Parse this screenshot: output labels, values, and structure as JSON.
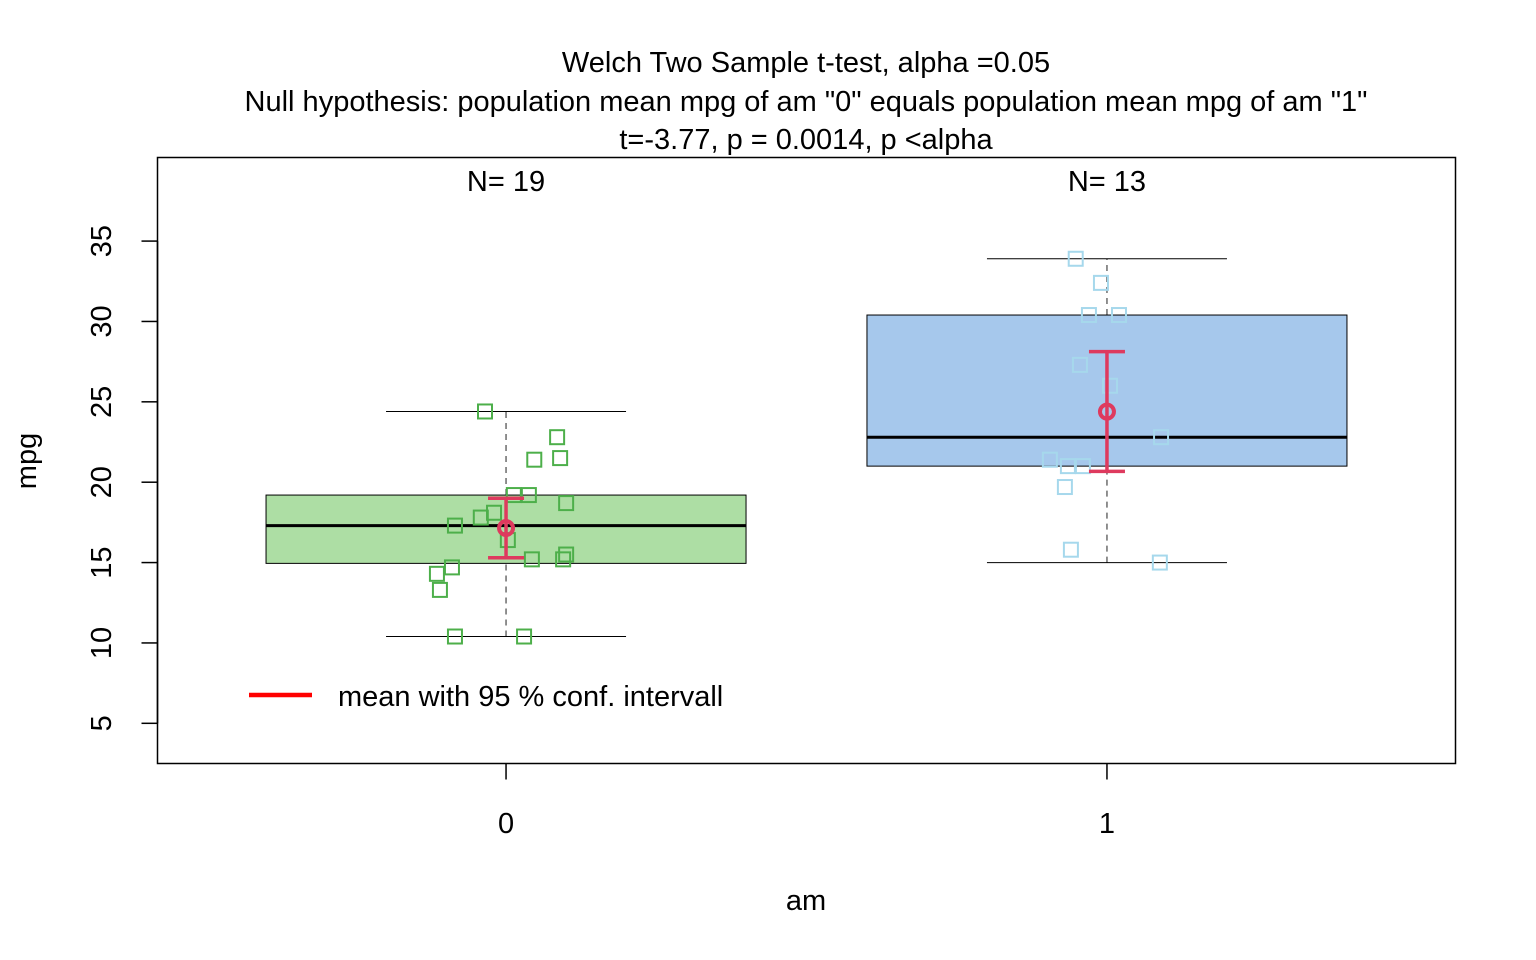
{
  "chart_data": {
    "type": "box",
    "title_lines": [
      "Welch Two Sample t-test, alpha =0.05",
      "Null hypothesis: population mean mpg of am \"0\" equals population mean mpg of am \"1\"",
      "t=-3.77, p = 0.0014, p <alpha"
    ],
    "xlabel": "am",
    "ylabel": "mpg",
    "categories": [
      "0",
      "1"
    ],
    "ylim": [
      2.5,
      40.2
    ],
    "yticks": [
      5,
      10,
      15,
      20,
      25,
      30,
      35
    ],
    "xlim": [
      0.42,
      2.58
    ],
    "grid": false,
    "groups": [
      {
        "category": "0",
        "n_label": "N= 19",
        "box_color": "#addea4",
        "point_color": "#4daf4a",
        "whisker_low": 10.4,
        "q1": 14.95,
        "median": 17.3,
        "q3": 19.2,
        "whisker_high": 24.4,
        "mean": 17.15,
        "ci_low": 15.3,
        "ci_high": 19.0,
        "points": [
          {
            "x": 0.965,
            "y": 24.4
          },
          {
            "x": 1.085,
            "y": 22.8
          },
          {
            "x": 1.09,
            "y": 21.5
          },
          {
            "x": 1.047,
            "y": 21.4
          },
          {
            "x": 1.038,
            "y": 19.2
          },
          {
            "x": 1.013,
            "y": 19.2
          },
          {
            "x": 1.1,
            "y": 18.7
          },
          {
            "x": 0.98,
            "y": 18.1
          },
          {
            "x": 0.958,
            "y": 17.8
          },
          {
            "x": 0.915,
            "y": 17.3
          },
          {
            "x": 1.003,
            "y": 16.4
          },
          {
            "x": 1.1,
            "y": 15.5
          },
          {
            "x": 1.095,
            "y": 15.2
          },
          {
            "x": 1.043,
            "y": 15.2
          },
          {
            "x": 0.91,
            "y": 14.7
          },
          {
            "x": 0.885,
            "y": 14.3
          },
          {
            "x": 0.89,
            "y": 13.3
          },
          {
            "x": 0.915,
            "y": 10.4
          },
          {
            "x": 1.03,
            "y": 10.4
          }
        ]
      },
      {
        "category": "1",
        "n_label": "N= 13",
        "box_color": "#a6c8ec",
        "point_color": "#a6d8ec",
        "whisker_low": 15.0,
        "q1": 21.0,
        "median": 22.8,
        "q3": 30.4,
        "whisker_high": 33.9,
        "mean": 24.39,
        "ci_low": 20.67,
        "ci_high": 28.12,
        "points": [
          {
            "x": 1.948,
            "y": 33.9
          },
          {
            "x": 1.99,
            "y": 32.4
          },
          {
            "x": 1.97,
            "y": 30.4
          },
          {
            "x": 2.02,
            "y": 30.4
          },
          {
            "x": 1.955,
            "y": 27.3
          },
          {
            "x": 2.005,
            "y": 26.0
          },
          {
            "x": 2.09,
            "y": 22.8
          },
          {
            "x": 1.905,
            "y": 21.4
          },
          {
            "x": 1.935,
            "y": 21.0
          },
          {
            "x": 1.96,
            "y": 21.0
          },
          {
            "x": 1.93,
            "y": 19.7
          },
          {
            "x": 1.94,
            "y": 15.8
          },
          {
            "x": 2.088,
            "y": 15.0
          }
        ]
      }
    ],
    "mean_color": "#de3a5e",
    "legend": {
      "position": "bottom-left",
      "entries": [
        {
          "label": "mean with 95 % conf. intervall",
          "color": "#ff0000"
        }
      ]
    }
  }
}
